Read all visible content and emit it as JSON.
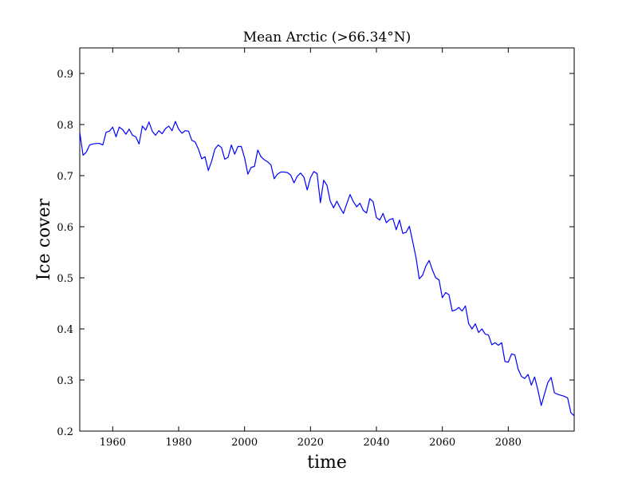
{
  "chart_data": {
    "type": "line",
    "title": "Mean Arctic (>66.34°N)",
    "xlabel": "time",
    "ylabel": "Ice cover",
    "xlim": [
      1950,
      2100
    ],
    "ylim": [
      0.2,
      0.95
    ],
    "xticks": [
      1960,
      1980,
      2000,
      2020,
      2040,
      2060,
      2080
    ],
    "yticks": [
      0.2,
      0.3,
      0.4,
      0.5,
      0.6,
      0.7,
      0.8,
      0.9
    ],
    "grid": false,
    "series": [
      {
        "color": "#0000ff",
        "x": [
          1950,
          1951,
          1952,
          1953,
          1954,
          1955,
          1956,
          1957,
          1958,
          1959,
          1960,
          1961,
          1962,
          1963,
          1964,
          1965,
          1966,
          1967,
          1968,
          1969,
          1970,
          1971,
          1972,
          1973,
          1974,
          1975,
          1976,
          1977,
          1978,
          1979,
          1980,
          1981,
          1982,
          1983,
          1984,
          1985,
          1986,
          1987,
          1988,
          1989,
          1990,
          1991,
          1992,
          1993,
          1994,
          1995,
          1996,
          1997,
          1998,
          1999,
          2000,
          2001,
          2002,
          2003,
          2004,
          2005,
          2006,
          2007,
          2008,
          2009,
          2010,
          2011,
          2012,
          2013,
          2014,
          2015,
          2016,
          2017,
          2018,
          2019,
          2020,
          2021,
          2022,
          2023,
          2024,
          2025,
          2026,
          2027,
          2028,
          2029,
          2030,
          2031,
          2032,
          2033,
          2034,
          2035,
          2036,
          2037,
          2038,
          2039,
          2040,
          2041,
          2042,
          2043,
          2044,
          2045,
          2046,
          2047,
          2048,
          2049,
          2050,
          2051,
          2052,
          2053,
          2054,
          2055,
          2056,
          2057,
          2058,
          2059,
          2060,
          2061,
          2062,
          2063,
          2064,
          2065,
          2066,
          2067,
          2068,
          2069,
          2070,
          2071,
          2072,
          2073,
          2074,
          2075,
          2076,
          2077,
          2078,
          2079,
          2080,
          2081,
          2082,
          2083,
          2084,
          2085,
          2086,
          2087,
          2088,
          2089,
          2090,
          2091,
          2092,
          2093,
          2094,
          2095,
          2096,
          2097,
          2098,
          2099,
          2100
        ],
        "y": [
          0.785,
          0.74,
          0.746,
          0.76,
          0.762,
          0.763,
          0.763,
          0.76,
          0.785,
          0.787,
          0.795,
          0.776,
          0.795,
          0.79,
          0.781,
          0.791,
          0.779,
          0.776,
          0.762,
          0.797,
          0.789,
          0.805,
          0.787,
          0.779,
          0.788,
          0.782,
          0.792,
          0.797,
          0.788,
          0.806,
          0.791,
          0.783,
          0.788,
          0.787,
          0.769,
          0.766,
          0.752,
          0.733,
          0.737,
          0.71,
          0.728,
          0.752,
          0.76,
          0.755,
          0.732,
          0.736,
          0.76,
          0.742,
          0.757,
          0.757,
          0.735,
          0.703,
          0.716,
          0.718,
          0.75,
          0.737,
          0.731,
          0.727,
          0.721,
          0.694,
          0.703,
          0.707,
          0.707,
          0.706,
          0.701,
          0.686,
          0.699,
          0.705,
          0.697,
          0.672,
          0.696,
          0.708,
          0.704,
          0.647,
          0.691,
          0.681,
          0.65,
          0.637,
          0.65,
          0.637,
          0.626,
          0.645,
          0.663,
          0.649,
          0.639,
          0.646,
          0.632,
          0.627,
          0.655,
          0.649,
          0.618,
          0.613,
          0.626,
          0.608,
          0.614,
          0.616,
          0.594,
          0.613,
          0.587,
          0.589,
          0.601,
          0.571,
          0.54,
          0.498,
          0.505,
          0.523,
          0.534,
          0.515,
          0.5,
          0.496,
          0.461,
          0.471,
          0.467,
          0.435,
          0.437,
          0.442,
          0.435,
          0.445,
          0.41,
          0.4,
          0.41,
          0.393,
          0.4,
          0.39,
          0.388,
          0.369,
          0.373,
          0.368,
          0.373,
          0.336,
          0.335,
          0.351,
          0.349,
          0.321,
          0.307,
          0.303,
          0.311,
          0.29,
          0.306,
          0.28,
          0.25,
          0.273,
          0.295,
          0.305,
          0.275,
          0.272,
          0.27,
          0.268,
          0.265,
          0.236,
          0.23
        ]
      }
    ]
  }
}
